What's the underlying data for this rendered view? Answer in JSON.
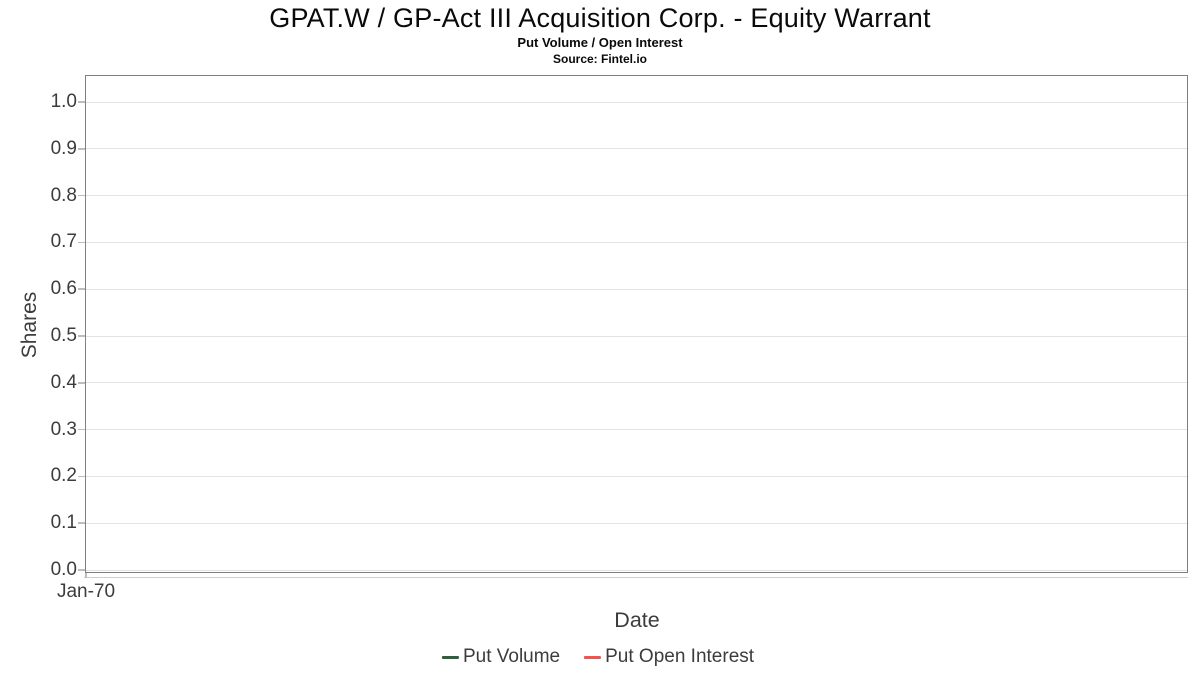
{
  "chart_data": {
    "type": "line",
    "title": "GPAT.W / GP-Act III Acquisition Corp. - Equity Warrant",
    "subtitle": "Put Volume / Open Interest",
    "source": "Source: Fintel.io",
    "xlabel": "Date",
    "ylabel": "Shares",
    "y_ticks": [
      "1.0",
      "0.9",
      "0.8",
      "0.7",
      "0.6",
      "0.5",
      "0.4",
      "0.3",
      "0.2",
      "0.1",
      "0.0"
    ],
    "x_ticks": [
      "Jan-70"
    ],
    "ylim": [
      0.0,
      1.0
    ],
    "grid": true,
    "legend_position": "bottom",
    "series": [
      {
        "name": "Put Volume",
        "color": "#2e6040",
        "x": [],
        "values": []
      },
      {
        "name": "Put Open Interest",
        "color": "#f7514f",
        "x": [],
        "values": []
      }
    ]
  }
}
